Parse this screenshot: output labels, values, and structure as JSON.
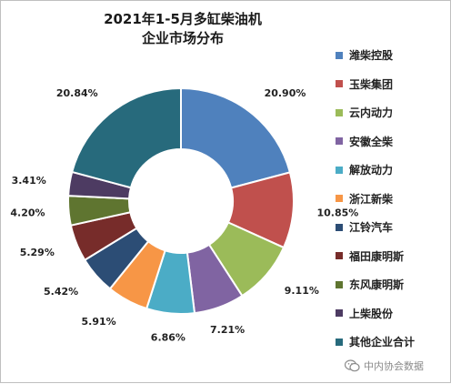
{
  "chart_data": {
    "type": "pie",
    "style": "donut",
    "title": [
      "2021年1-5月多缸柴油机",
      "企业市场分布"
    ],
    "categories": [
      "潍柴控股",
      "玉柴集团",
      "云内动力",
      "安徽全柴",
      "解放动力",
      "浙江新柴",
      "江铃汽车",
      "福田康明斯",
      "东风康明斯",
      "上柴股份",
      "其他企业合计"
    ],
    "values": [
      20.9,
      10.85,
      9.11,
      7.21,
      6.86,
      5.91,
      5.42,
      5.29,
      4.2,
      3.41,
      20.84
    ],
    "data_labels": [
      "20.90%",
      "10.85%",
      "9.11%",
      "7.21%",
      "6.86%",
      "5.91%",
      "5.42%",
      "5.29%",
      "4.20%",
      "3.41%",
      "20.84%"
    ],
    "colors": [
      "#4f81bd",
      "#c0504d",
      "#9bbb59",
      "#8064a2",
      "#4bacc6",
      "#f79646",
      "#2c4d75",
      "#772c2a",
      "#5f7530",
      "#4d3b62",
      "#276a7c"
    ],
    "legend_position": "right"
  },
  "watermark": {
    "text": "中内协会数据",
    "icon": "wechat-icon"
  }
}
